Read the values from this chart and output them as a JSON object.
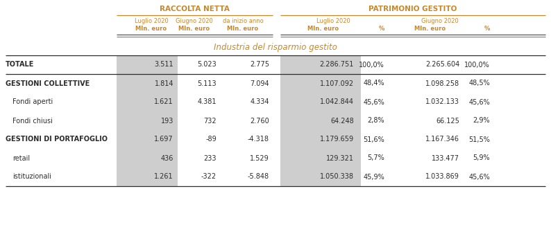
{
  "orange_color": "#C8882A",
  "dark_color": "#2C2C2C",
  "gray_bg": "#CECECE",
  "white": "#FFFFFF",
  "section_title": "Industria del risparmio gestito",
  "header1": "RACCOLTA NETTA",
  "header2": "PATRIMONIO GESTITO",
  "rows": [
    {
      "label": "TOTALE",
      "bold": true,
      "indent": 0,
      "separator_after": true,
      "rn": [
        "3.511",
        "5.023",
        "2.775"
      ],
      "pg_jul": [
        "2.286.751",
        "100,0%"
      ],
      "pg_jun": [
        "2.265.604",
        "100,0%"
      ]
    },
    {
      "label": "GESTIONI COLLETTIVE",
      "bold": true,
      "indent": 0,
      "separator_after": false,
      "rn": [
        "1.814",
        "5.113",
        "7.094"
      ],
      "pg_jul": [
        "1.107.092",
        "48,4%"
      ],
      "pg_jun": [
        "1.098.258",
        "48,5%"
      ]
    },
    {
      "label": "Fondi aperti",
      "bold": false,
      "indent": 1,
      "separator_after": false,
      "rn": [
        "1.621",
        "4.381",
        "4.334"
      ],
      "pg_jul": [
        "1.042.844",
        "45,6%"
      ],
      "pg_jun": [
        "1.032.133",
        "45,6%"
      ]
    },
    {
      "label": "Fondi chiusi",
      "bold": false,
      "indent": 1,
      "separator_after": false,
      "rn": [
        "193",
        "732",
        "2.760"
      ],
      "pg_jul": [
        "64.248",
        "2,8%"
      ],
      "pg_jun": [
        "66.125",
        "2,9%"
      ]
    },
    {
      "label": "GESTIONI DI PORTAFOGLIO",
      "bold": true,
      "indent": 0,
      "separator_after": false,
      "rn": [
        "1.697",
        "-89",
        "-4.318"
      ],
      "pg_jul": [
        "1.179.659",
        "51,6%"
      ],
      "pg_jun": [
        "1.167.346",
        "51,5%"
      ]
    },
    {
      "label": "retail",
      "bold": false,
      "indent": 1,
      "separator_after": false,
      "rn": [
        "436",
        "233",
        "1.529"
      ],
      "pg_jul": [
        "129.321",
        "5,7%"
      ],
      "pg_jun": [
        "133.477",
        "5,9%"
      ]
    },
    {
      "label": "istituzionali",
      "bold": false,
      "indent": 1,
      "separator_after": false,
      "rn": [
        "1.261",
        "-322",
        "-5.848"
      ],
      "pg_jul": [
        "1.050.338",
        "45,9%"
      ],
      "pg_jun": [
        "1.033.869",
        "45,6%"
      ]
    }
  ],
  "fig_width": 7.94,
  "fig_height": 3.54,
  "dpi": 100
}
